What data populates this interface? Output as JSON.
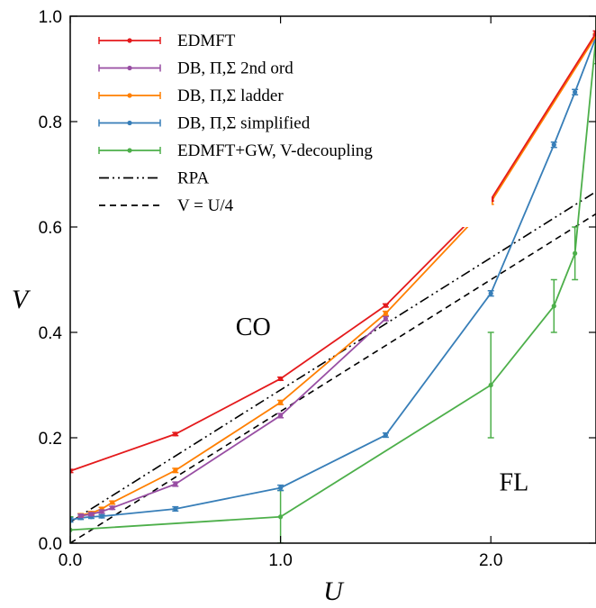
{
  "chart_data": {
    "type": "line",
    "xlabel": "U",
    "ylabel": "V",
    "xlim": [
      0,
      2.5
    ],
    "ylim": [
      0,
      1.0
    ],
    "x_ticks": [
      "0.0",
      "1.0",
      "2.0"
    ],
    "y_ticks": [
      "0.0",
      "0.2",
      "0.4",
      "0.6",
      "0.8",
      "1.0"
    ],
    "grid": false,
    "legend_position": "top-left",
    "annotations": [
      {
        "text": "CO",
        "x": 0.87,
        "y": 0.395
      },
      {
        "text": "FL",
        "x": 2.11,
        "y": 0.1
      }
    ],
    "series": [
      {
        "name": "EDMFT",
        "color": "#e41a1c",
        "marker": true,
        "x": [
          0.0,
          0.5,
          1.0,
          1.5,
          2.0,
          2.5
        ],
        "y": [
          0.137,
          0.207,
          0.312,
          0.451,
          0.652,
          0.968
        ],
        "err": [
          0.003,
          0.003,
          0.003,
          0.003,
          0.003,
          0.004
        ]
      },
      {
        "name": "DB, Π,Σ 2nd ord",
        "color": "#984ea3",
        "marker": true,
        "x": [
          0.05,
          0.1,
          0.15,
          0.2,
          0.5,
          1.0,
          1.5
        ],
        "y": [
          0.052,
          0.055,
          0.06,
          0.067,
          0.112,
          0.242,
          0.426
        ],
        "err": [
          0.003,
          0.003,
          0.003,
          0.003,
          0.004,
          0.004,
          0.004
        ]
      },
      {
        "name": "DB, Π,Σ ladder",
        "color": "#ff7f00",
        "marker": true,
        "x": [
          0.05,
          0.1,
          0.15,
          0.2,
          0.5,
          1.0,
          1.5,
          2.0,
          2.5
        ],
        "y": [
          0.053,
          0.057,
          0.065,
          0.077,
          0.138,
          0.267,
          0.436,
          0.647,
          0.963
        ],
        "err": [
          0.003,
          0.003,
          0.003,
          0.003,
          0.004,
          0.004,
          0.004,
          0.004,
          0.004
        ]
      },
      {
        "name": "DB, Π,Σ simplified",
        "color": "#377eb8",
        "marker": true,
        "x": [
          0.0,
          0.05,
          0.1,
          0.15,
          0.5,
          1.0,
          1.5,
          2.0,
          2.3,
          2.4,
          2.5
        ],
        "y": [
          0.044,
          0.048,
          0.05,
          0.051,
          0.065,
          0.105,
          0.205,
          0.474,
          0.756,
          0.856,
          0.96
        ],
        "err": [
          0.004,
          0.003,
          0.003,
          0.003,
          0.004,
          0.005,
          0.004,
          0.005,
          0.005,
          0.005,
          0.005
        ]
      },
      {
        "name": "EDMFT+GW, V-decoupling",
        "color": "#4daf4a",
        "marker": true,
        "x": [
          0.0,
          1.0,
          2.0,
          2.3,
          2.4,
          2.5
        ],
        "y": [
          0.025,
          0.05,
          0.3,
          0.45,
          0.55,
          0.96
        ],
        "err": [
          0.025,
          0.05,
          0.1,
          0.05,
          0.05,
          0.05
        ]
      },
      {
        "name": "RPA",
        "color": "#000000",
        "dash": "dash-dot-dot",
        "marker": false,
        "x": [
          0.0,
          2.5
        ],
        "y": [
          0.04,
          0.667
        ]
      },
      {
        "name": "V = U/4",
        "color": "#000000",
        "dash": "dashed",
        "marker": false,
        "x": [
          0.0,
          2.5
        ],
        "y": [
          0.0,
          0.625
        ]
      }
    ]
  }
}
